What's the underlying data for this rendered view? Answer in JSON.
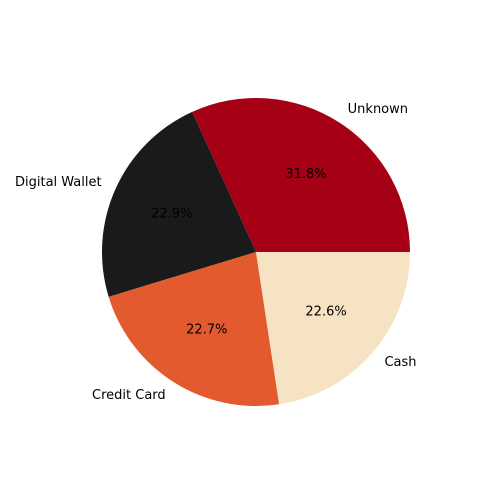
{
  "chart_data": {
    "type": "pie",
    "title": "",
    "slices": [
      {
        "label": "Unknown",
        "value": 31.8,
        "pct_label": "31.8%",
        "color": "#a50016"
      },
      {
        "label": "Digital Wallet",
        "value": 22.9,
        "pct_label": "22.9%",
        "color": "#1a1a1a"
      },
      {
        "label": "Credit Card",
        "value": 22.7,
        "pct_label": "22.7%",
        "color": "#e25a2e"
      },
      {
        "label": "Cash",
        "value": 22.6,
        "pct_label": "22.6%",
        "color": "#f5e3c4"
      }
    ],
    "start_angle_deg": 0,
    "direction": "counterclockwise",
    "legend": "none"
  }
}
